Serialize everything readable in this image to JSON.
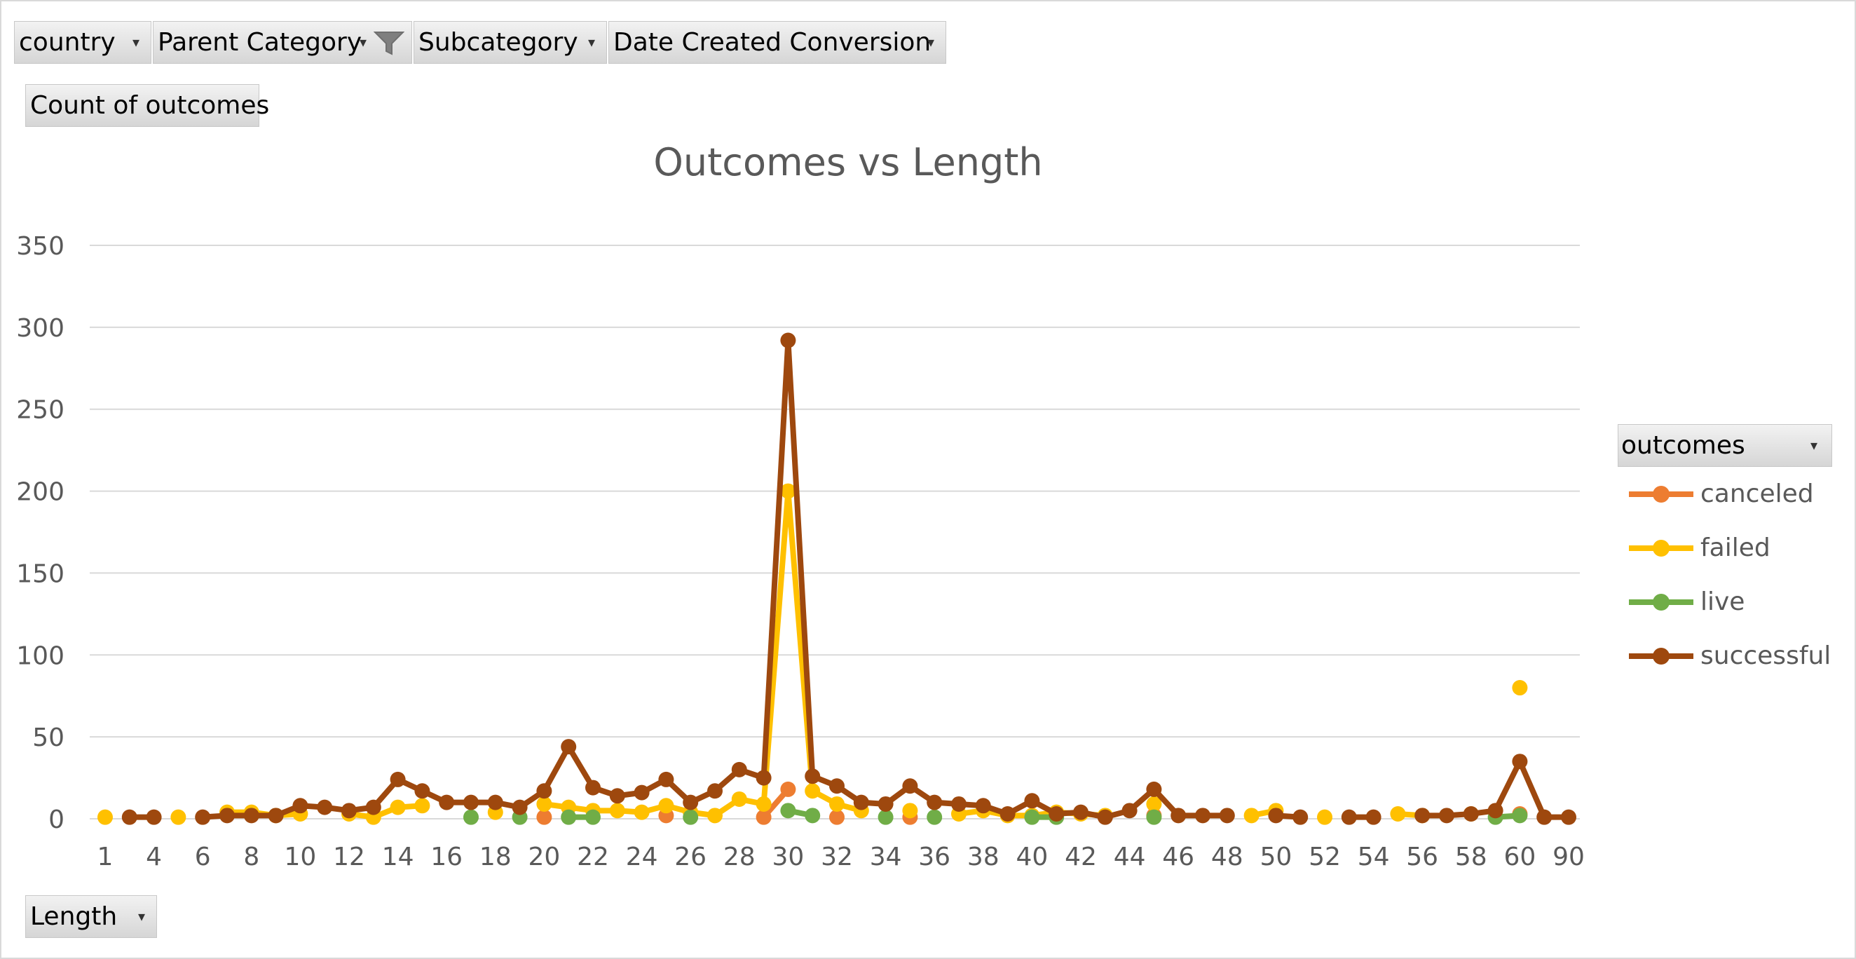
{
  "filters": {
    "country": "country",
    "parent_category": "Parent Category",
    "subcategory": "Subcategory",
    "date_created": "Date Created Conversion"
  },
  "values_field": "Count of outcomes",
  "axis_field": "Length",
  "legend_field": "outcomes",
  "colors": {
    "canceled": "#ed7d31",
    "failed": "#ffc000",
    "live": "#70ad47",
    "successful": "#9e480e",
    "grid": "#d9d9d9",
    "axis_text": "#595959"
  },
  "chart_data": {
    "type": "line",
    "title": "Outcomes vs Length",
    "xlabel": "",
    "ylabel": "",
    "ylim": [
      0,
      350
    ],
    "yticks": [
      0,
      50,
      100,
      150,
      200,
      250,
      300,
      350
    ],
    "grid": true,
    "legend_position": "right",
    "categories": [
      "1",
      "3",
      "4",
      "5",
      "6",
      "7",
      "8",
      "9",
      "10",
      "11",
      "12",
      "13",
      "14",
      "15",
      "16",
      "17",
      "18",
      "19",
      "20",
      "21",
      "22",
      "23",
      "24",
      "25",
      "26",
      "27",
      "28",
      "29",
      "30",
      "31",
      "32",
      "33",
      "34",
      "35",
      "36",
      "37",
      "38",
      "39",
      "40",
      "41",
      "42",
      "43",
      "44",
      "45",
      "46",
      "47",
      "48",
      "49",
      "50",
      "51",
      "52",
      "53",
      "54",
      "55",
      "56",
      "57",
      "58",
      "59",
      "60",
      "61",
      "90"
    ],
    "x_tick_labels": [
      "1",
      "4",
      "6",
      "8",
      "10",
      "12",
      "14",
      "16",
      "18",
      "20",
      "22",
      "24",
      "26",
      "28",
      "30",
      "32",
      "34",
      "36",
      "38",
      "40",
      "42",
      "44",
      "46",
      "48",
      "50",
      "52",
      "54",
      "56",
      "58",
      "60",
      "90"
    ],
    "series": [
      {
        "name": "canceled",
        "values": [
          null,
          null,
          null,
          null,
          null,
          null,
          null,
          null,
          null,
          null,
          null,
          null,
          null,
          null,
          null,
          null,
          null,
          null,
          1,
          null,
          null,
          null,
          null,
          2,
          null,
          null,
          null,
          1,
          18,
          null,
          1,
          null,
          null,
          1,
          null,
          null,
          null,
          null,
          null,
          null,
          null,
          null,
          null,
          2,
          null,
          null,
          null,
          null,
          null,
          null,
          null,
          null,
          null,
          null,
          null,
          null,
          null,
          null,
          3,
          null,
          null
        ]
      },
      {
        "name": "failed",
        "values": [
          1,
          null,
          null,
          1,
          null,
          4,
          4,
          2,
          3,
          null,
          3,
          1,
          7,
          8,
          null,
          null,
          4,
          null,
          9,
          7,
          5,
          5,
          4,
          8,
          4,
          2,
          12,
          9,
          200,
          17,
          9,
          5,
          null,
          5,
          null,
          3,
          5,
          2,
          2,
          4,
          3,
          2,
          null,
          9,
          null,
          null,
          null,
          2,
          5,
          null,
          1,
          null,
          null,
          3,
          2,
          null,
          3,
          null,
          80,
          null,
          null
        ]
      },
      {
        "name": "live",
        "values": [
          null,
          null,
          null,
          null,
          null,
          null,
          null,
          null,
          null,
          null,
          null,
          null,
          null,
          null,
          null,
          1,
          null,
          1,
          null,
          1,
          1,
          null,
          null,
          null,
          1,
          null,
          null,
          null,
          5,
          2,
          null,
          null,
          1,
          null,
          1,
          null,
          null,
          null,
          1,
          1,
          null,
          null,
          null,
          1,
          null,
          null,
          null,
          null,
          null,
          null,
          null,
          null,
          null,
          null,
          null,
          null,
          null,
          1,
          2,
          null,
          null
        ]
      },
      {
        "name": "successful",
        "values": [
          null,
          1,
          1,
          null,
          1,
          2,
          2,
          2,
          8,
          7,
          5,
          7,
          24,
          17,
          10,
          10,
          10,
          7,
          17,
          44,
          19,
          14,
          16,
          24,
          10,
          17,
          30,
          25,
          292,
          26,
          20,
          10,
          9,
          20,
          10,
          9,
          8,
          3,
          11,
          3,
          4,
          1,
          5,
          18,
          2,
          2,
          2,
          null,
          2,
          1,
          null,
          1,
          1,
          null,
          2,
          2,
          3,
          5,
          35,
          1,
          1
        ]
      }
    ]
  }
}
